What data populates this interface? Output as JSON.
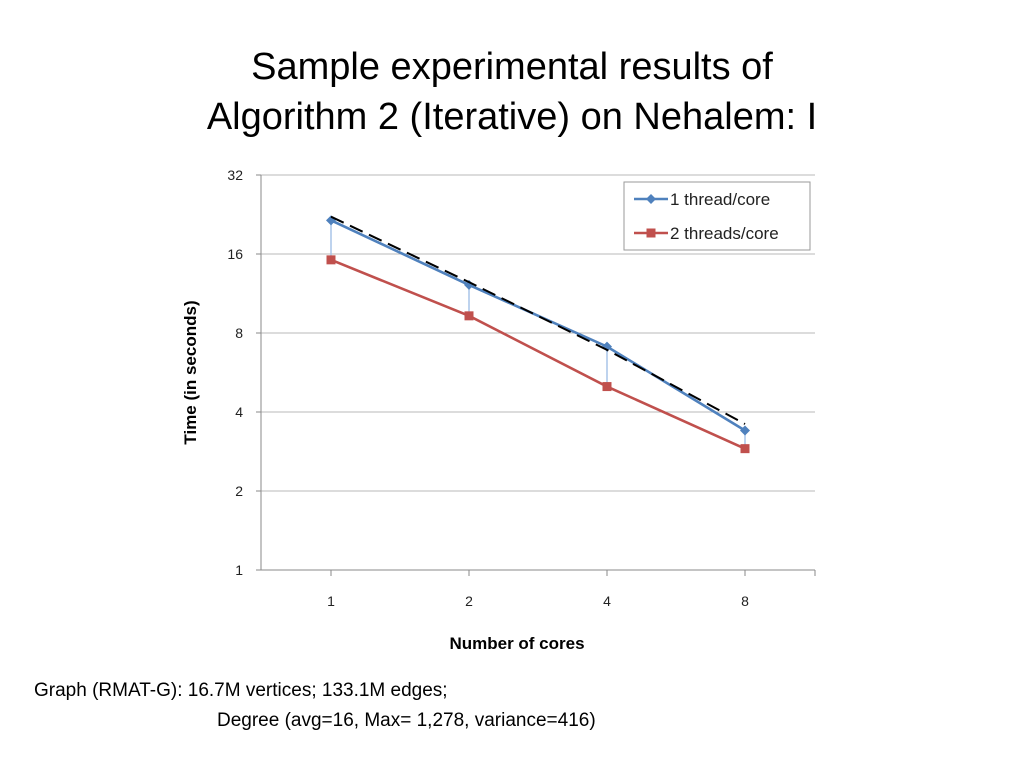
{
  "slide": {
    "title_line1": "Sample experimental results of",
    "title_line2": "Algorithm 2 (Iterative) on Nehalem: I",
    "caption_line1": "Graph (RMAT-G): 16.7M vertices; 133.1M edges;",
    "caption_line2": "Degree (avg=16, Max= 1,278, variance=416)"
  },
  "chart_data": {
    "type": "line",
    "title": "",
    "xlabel": "Number of cores",
    "ylabel": "Time (in seconds)",
    "x_log_base": 2,
    "y_log_base": 2,
    "categories": [
      "1",
      "2",
      "4",
      "8"
    ],
    "yticks": [
      1,
      2,
      4,
      8,
      16,
      32
    ],
    "ylim": [
      1,
      32
    ],
    "grid": true,
    "legend_position": "top-right",
    "series": [
      {
        "name": "1 thread/core",
        "values": [
          21.5,
          12.2,
          7.1,
          3.4
        ],
        "color": "#4f81bd",
        "marker": "diamond"
      },
      {
        "name": "2 threads/core",
        "values": [
          15.2,
          9.3,
          5.0,
          2.9
        ],
        "color": "#c0504d",
        "marker": "square"
      }
    ],
    "reference_line": {
      "style": "dashed",
      "color": "#000000",
      "values": [
        22.2,
        12.5,
        6.9,
        3.6
      ]
    },
    "drop_lines": {
      "color": "#a9c4e8"
    }
  }
}
